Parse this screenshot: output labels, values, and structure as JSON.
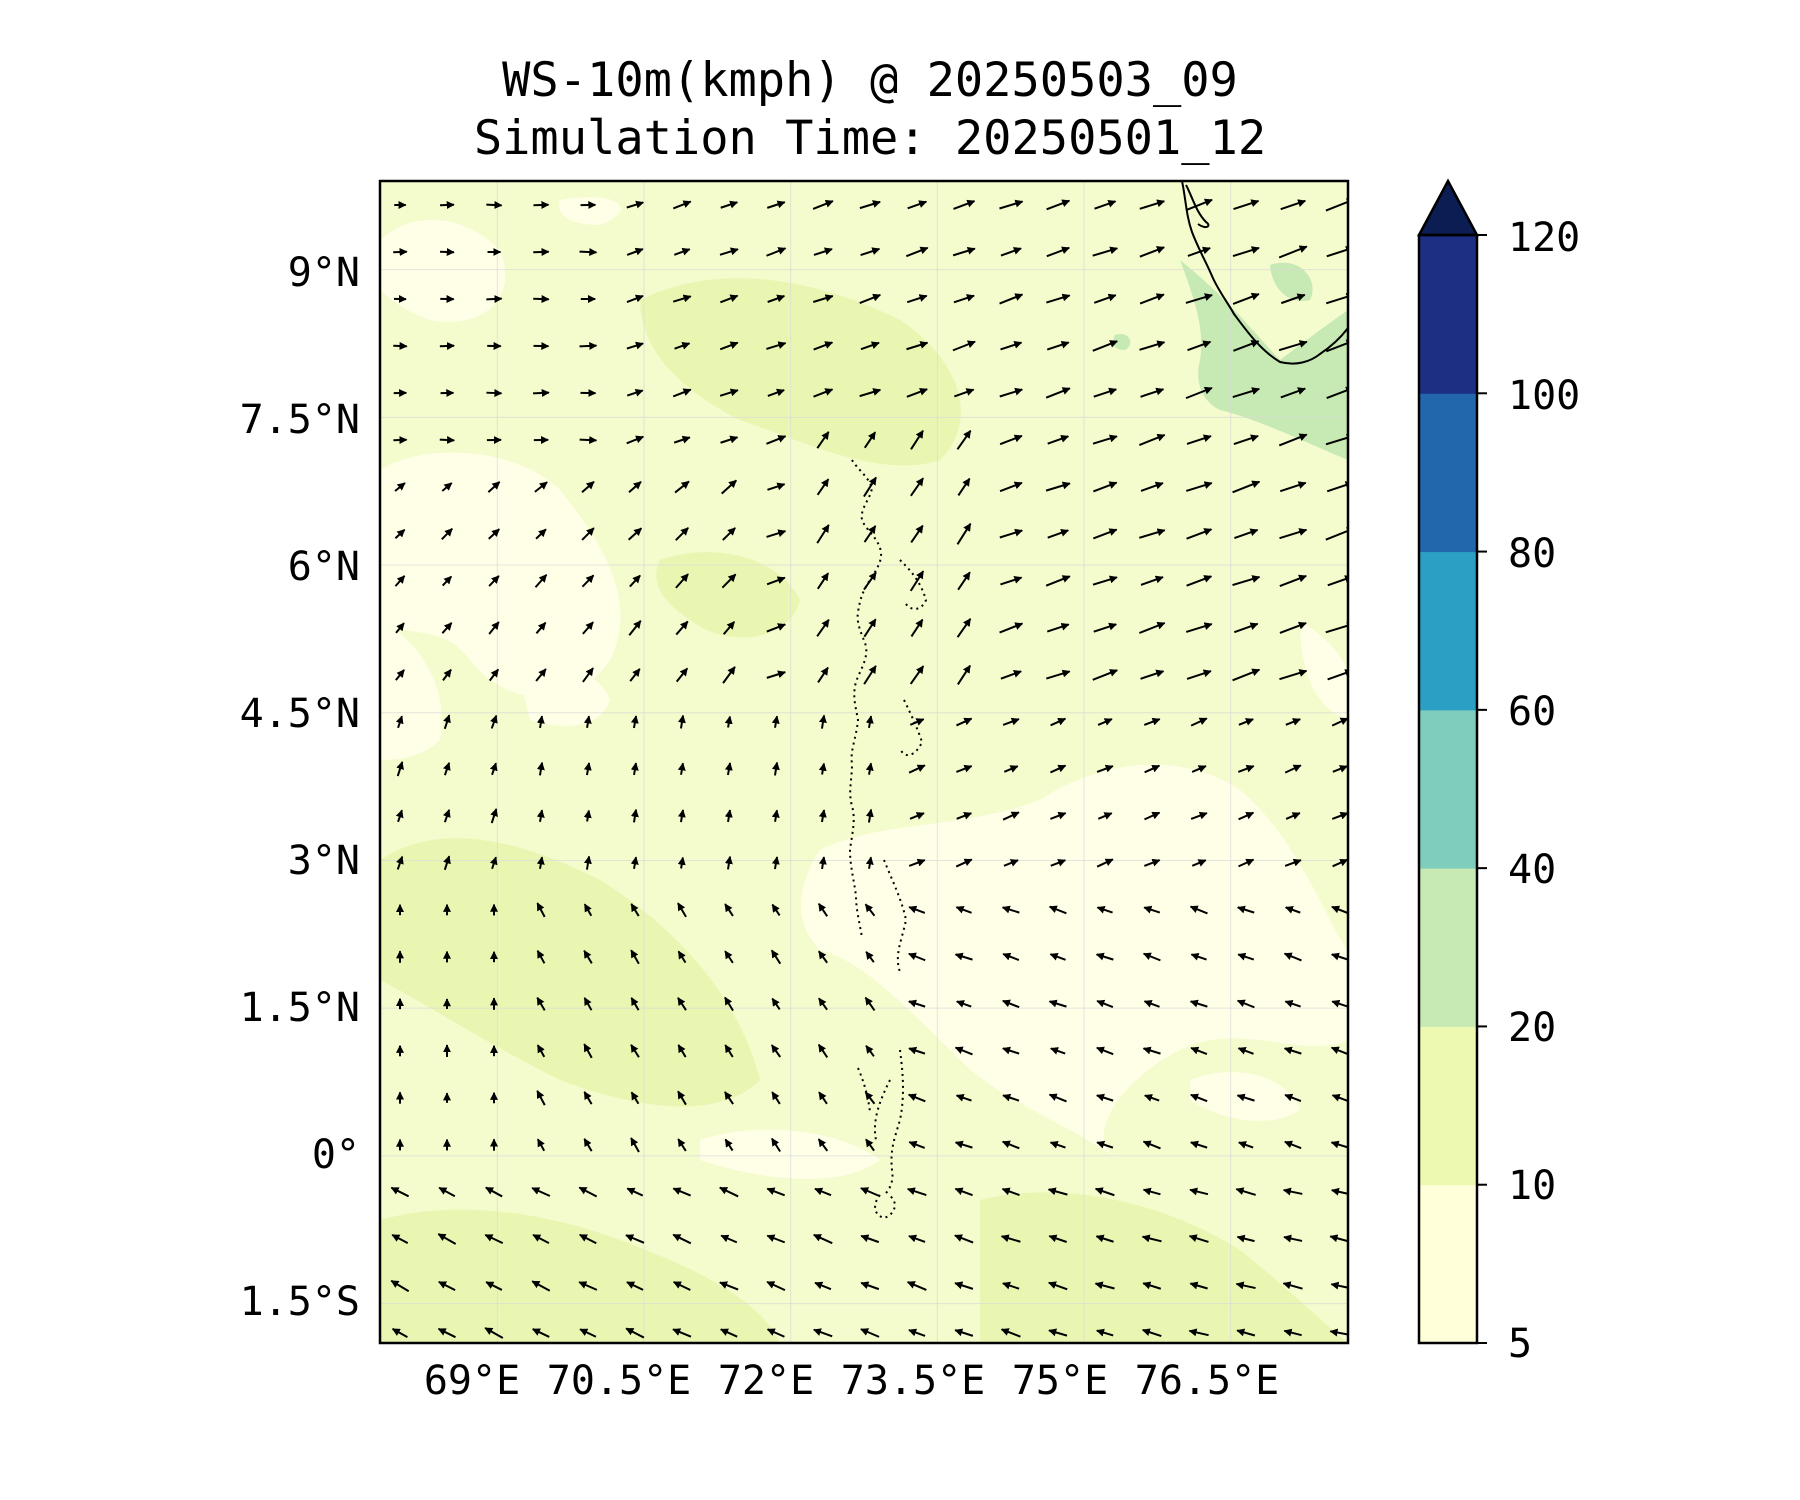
{
  "title": {
    "line1": "WS-10m(kmph) @ 20250503_09",
    "line2": "Simulation Time: 20250501_12"
  },
  "map": {
    "projection": "PlateCarree",
    "lon_range_deg": [
      67.8,
      77.7
    ],
    "lat_range_deg": [
      -1.9,
      9.9
    ],
    "lat_ticks": [
      {
        "value": 9,
        "label": "9°N"
      },
      {
        "value": 7.5,
        "label": "7.5°N"
      },
      {
        "value": 6,
        "label": "6°N"
      },
      {
        "value": 4.5,
        "label": "4.5°N"
      },
      {
        "value": 3,
        "label": "3°N"
      },
      {
        "value": 1.5,
        "label": "1.5°N"
      },
      {
        "value": 0,
        "label": "0°"
      },
      {
        "value": -1.5,
        "label": "1.5°S"
      }
    ],
    "lon_ticks": [
      {
        "value": 69,
        "label": "69°E"
      },
      {
        "value": 70.5,
        "label": "70.5°E"
      },
      {
        "value": 72,
        "label": "72°E"
      },
      {
        "value": 73.5,
        "label": "73.5°E"
      },
      {
        "value": 75,
        "label": "75°E"
      },
      {
        "value": 76.5,
        "label": "76.5°E"
      }
    ],
    "gridlines": true,
    "features": [
      "India south-west coastline (Kerala)",
      "Lakshadweep / Maldives island chain (dotted)"
    ],
    "dominant_flow": "north-eastward in the north, north-westward in the south-west, westward in the south"
  },
  "colorbar": {
    "label_side": "right",
    "extend": "max",
    "levels": [
      5,
      10,
      20,
      40,
      60,
      80,
      100,
      120
    ],
    "tick_labels": [
      "5",
      "10",
      "20",
      "40",
      "60",
      "80",
      "100",
      "120"
    ],
    "colors": [
      "#ffffd9",
      "#edf8b1",
      "#c7e9b4",
      "#7fcdbb",
      "#2c9fc4",
      "#2266ac",
      "#1d2f82"
    ],
    "extend_color": "#0b1d52"
  },
  "colors": {
    "background": "#ffffff",
    "low_wind": "#ffffd9",
    "moderate_wind": "#edf8b1",
    "land_green": "#c7e9b4",
    "arrow": "#000000"
  }
}
